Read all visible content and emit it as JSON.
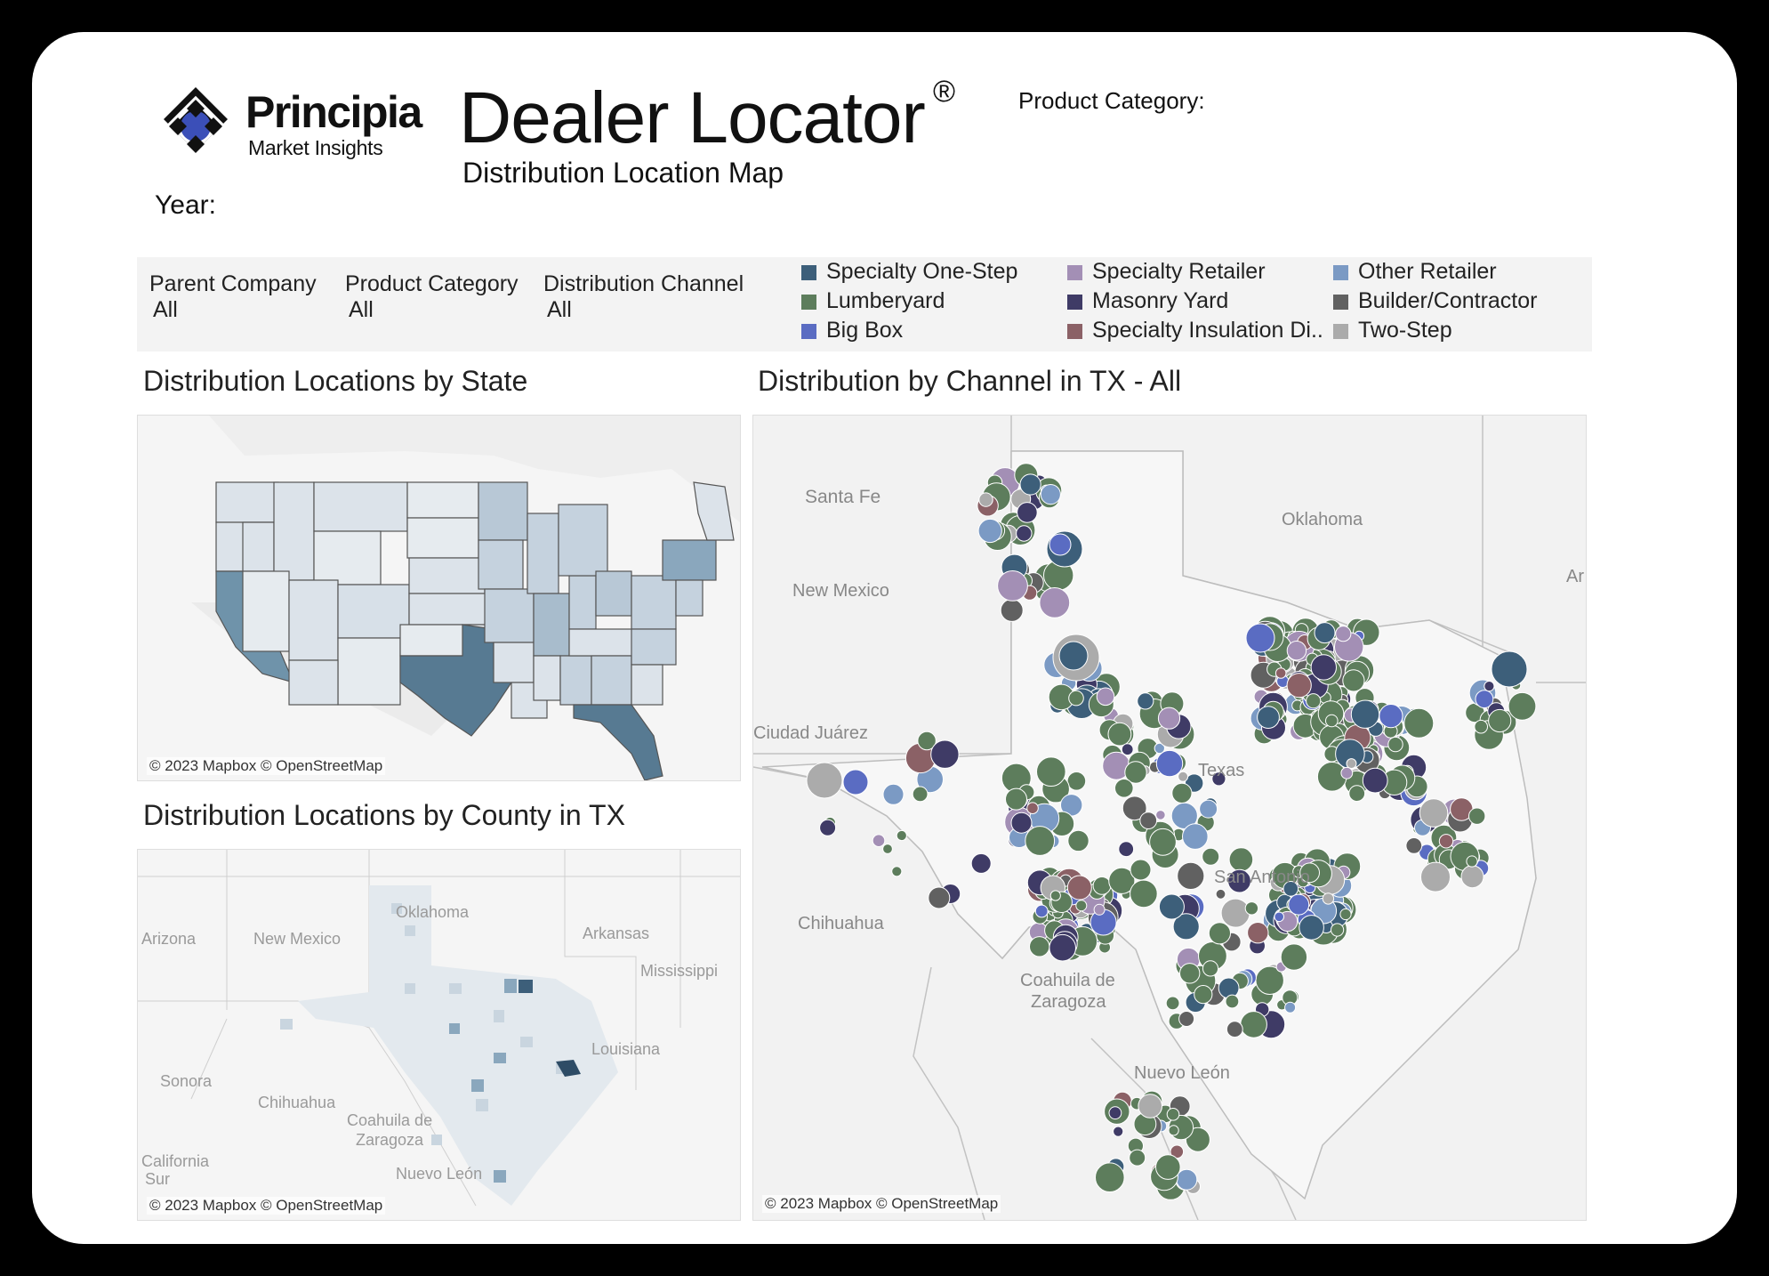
{
  "brand": {
    "name": "Principia",
    "sub": "Market Insights"
  },
  "header": {
    "title": "Dealer Locator",
    "title_mark": "®",
    "subtitle": "Distribution Location Map",
    "year_label": "Year:",
    "product_category_label": "Product Category:"
  },
  "filters": [
    {
      "label": "Parent Company",
      "value": "All"
    },
    {
      "label": "Product Category",
      "value": "All"
    },
    {
      "label": "Distribution Channel",
      "value": "All"
    }
  ],
  "legend": [
    {
      "label": "Specialty One-Step",
      "color": "#3d5f7a"
    },
    {
      "label": "Lumberyard",
      "color": "#5d7d5c"
    },
    {
      "label": "Big Box",
      "color": "#5a6cc2"
    },
    {
      "label": "Specialty Retailer",
      "color": "#a38fb5"
    },
    {
      "label": "Masonry Yard",
      "color": "#3f3b66"
    },
    {
      "label": "Specialty Insulation Di..",
      "color": "#8b6166"
    },
    {
      "label": "Other Retailer",
      "color": "#7b9ac4"
    },
    {
      "label": "Builder/Contractor",
      "color": "#616161"
    },
    {
      "label": "Two-Step",
      "color": "#ababab"
    }
  ],
  "panels": {
    "state": {
      "title": "Distribution Locations by State",
      "attribution": "© 2023 Mapbox © OpenStreetMap"
    },
    "county": {
      "title": "Distribution Locations by County in TX",
      "attribution": "© 2023 Mapbox © OpenStreetMap",
      "labels": [
        "Oklahoma",
        "Arizona",
        "New Mexico",
        "Arkansas",
        "Mississippi",
        "Louisiana",
        "Sonora",
        "Chihuahua",
        "Coahuila de",
        "Zaragoza",
        "California",
        "Sur",
        "Nuevo León"
      ]
    },
    "channel": {
      "title": "Distribution by Channel in TX - All",
      "attribution": "© 2023 Mapbox © OpenStreetMap",
      "labels": [
        "Santa Fe",
        "New Mexico",
        "Oklahoma",
        "Ar",
        "Ciudad Juárez",
        "Texas",
        "San Antonio",
        "Chihuahua",
        "Coahuila de",
        "Zaragoza",
        "Nuevo León"
      ]
    }
  }
}
